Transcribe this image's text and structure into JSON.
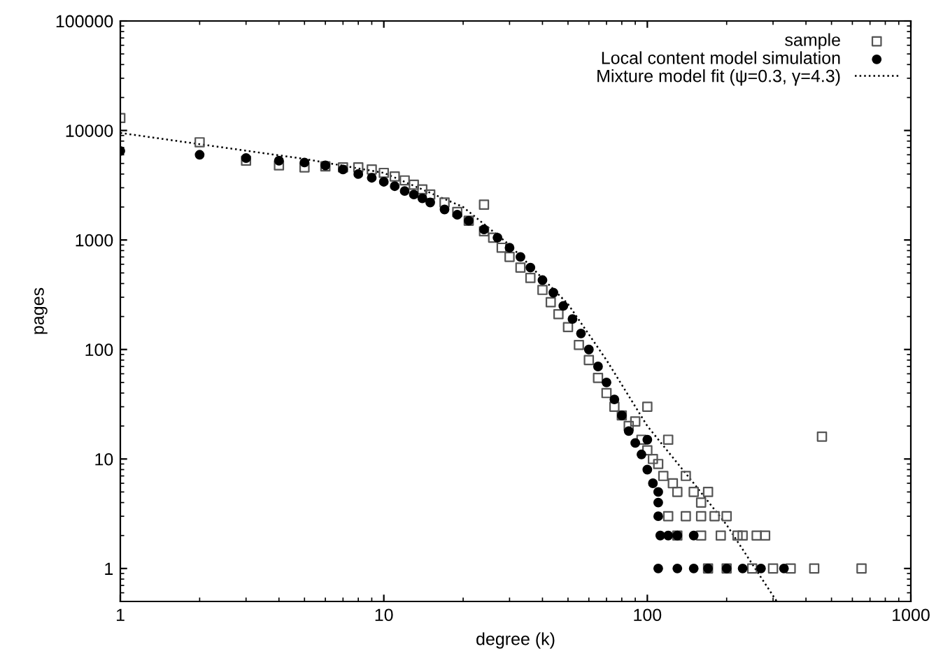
{
  "chart_data": {
    "type": "scatter",
    "xlabel": "degree (k)",
    "ylabel": "pages",
    "log": "xy",
    "xlim": [
      1,
      1000
    ],
    "ylim": [
      0.5,
      100000
    ],
    "xticks": [
      1,
      10,
      100,
      1000
    ],
    "yticks": [
      1,
      10,
      100,
      1000,
      10000,
      100000
    ],
    "grid": false,
    "legend": "top right",
    "series": [
      {
        "name": "sample",
        "marker": "square",
        "color": "#555555",
        "x": [
          1,
          2,
          3,
          4,
          5,
          6,
          7,
          8,
          9,
          10,
          11,
          12,
          13,
          14,
          15,
          17,
          19,
          21,
          24,
          24,
          26,
          28,
          30,
          33,
          36,
          40,
          43,
          46,
          50,
          55,
          60,
          65,
          70,
          75,
          80,
          85,
          90,
          95,
          100,
          105,
          110,
          100,
          120,
          115,
          125,
          130,
          140,
          150,
          160,
          170,
          120,
          140,
          160,
          180,
          200,
          220,
          130,
          160,
          190,
          230,
          260,
          280,
          170,
          200,
          250,
          300,
          350,
          430,
          650,
          460
        ],
        "values": [
          13000,
          7800,
          5300,
          4800,
          4600,
          4700,
          4600,
          4600,
          4400,
          4100,
          3800,
          3500,
          3200,
          2900,
          2600,
          2200,
          1800,
          1500,
          2100,
          1200,
          1050,
          850,
          700,
          560,
          450,
          350,
          270,
          210,
          160,
          110,
          80,
          55,
          40,
          30,
          25,
          20,
          22,
          15,
          12,
          10,
          9,
          30,
          15,
          7,
          6,
          5,
          7,
          5,
          4,
          5,
          3,
          3,
          3,
          3,
          3,
          2,
          2,
          2,
          2,
          2,
          2,
          2,
          1,
          1,
          1,
          1,
          1,
          1,
          1,
          16
        ]
      },
      {
        "name": "Local content model simulation",
        "marker": "circle",
        "color": "#000000",
        "x": [
          1,
          2,
          3,
          4,
          5,
          6,
          7,
          8,
          9,
          10,
          11,
          12,
          13,
          14,
          15,
          17,
          19,
          21,
          24,
          27,
          30,
          33,
          36,
          40,
          44,
          48,
          52,
          56,
          60,
          65,
          70,
          75,
          80,
          85,
          90,
          95,
          100,
          100,
          105,
          110,
          110,
          110,
          112,
          120,
          130,
          150,
          110,
          130,
          150,
          170,
          200,
          230,
          270,
          330
        ],
        "values": [
          6500,
          6000,
          5600,
          5300,
          5100,
          4800,
          4400,
          4000,
          3700,
          3400,
          3100,
          2800,
          2600,
          2400,
          2200,
          1900,
          1700,
          1500,
          1250,
          1050,
          850,
          700,
          560,
          430,
          330,
          250,
          190,
          140,
          100,
          70,
          50,
          35,
          25,
          18,
          14,
          11,
          8,
          15,
          6,
          5,
          4,
          3,
          2,
          2,
          2,
          2,
          1,
          1,
          1,
          1,
          1,
          1,
          1,
          1
        ]
      },
      {
        "name": "Mixture model fit (ψ=0.3, γ=4.3)",
        "type": "line",
        "line_style": "dotted",
        "marker": "none",
        "color": "#000000",
        "x": [
          1,
          2,
          5,
          10,
          20,
          30,
          50,
          70,
          100,
          150,
          200,
          250,
          310
        ],
        "values": [
          9500,
          7500,
          5500,
          4100,
          2000,
          900,
          260,
          80,
          20,
          6,
          2.5,
          1.1,
          0.5
        ]
      }
    ]
  }
}
